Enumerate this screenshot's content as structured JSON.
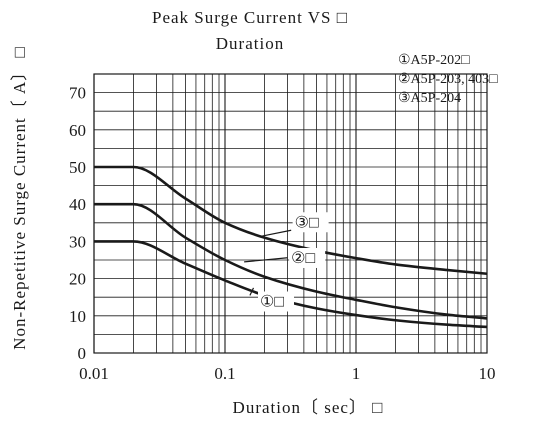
{
  "chart_data": {
    "type": "line",
    "title_lines": [
      "Peak Surge Current VS □",
      "Duration"
    ],
    "xlabel": "Duration〔 sec〕 □",
    "ylabel": "Non-Repetitive Surge Current〔 A〕 □",
    "x_scale": "log",
    "xlim": [
      0.01,
      10
    ],
    "ylim": [
      0,
      75
    ],
    "x_tick_labels": [
      "0.01",
      "0.1",
      "1",
      "10"
    ],
    "x_ticks": [
      0.01,
      0.1,
      1,
      10
    ],
    "y_ticks": [
      0,
      10,
      20,
      30,
      40,
      50,
      60,
      70
    ],
    "y_tick_labels": [
      "0",
      "10",
      "20",
      "30",
      "40",
      "50",
      "60",
      "70"
    ],
    "grid": true,
    "legend": {
      "placement": "top-right",
      "entries": [
        "①A5P-202□",
        "②A5P-203, 403□",
        "③A5P-204"
      ]
    },
    "series": [
      {
        "name": "①A5P-202□",
        "annotation": "①□",
        "points": [
          [
            0.01,
            30
          ],
          [
            0.02,
            30
          ],
          [
            0.05,
            24
          ],
          [
            0.1,
            19.5
          ],
          [
            0.2,
            15.5
          ],
          [
            0.5,
            12
          ],
          [
            1,
            10.2
          ],
          [
            2,
            8.8
          ],
          [
            5,
            7.6
          ],
          [
            10,
            7
          ]
        ]
      },
      {
        "name": "②A5P-203, 403□",
        "annotation": "②□",
        "points": [
          [
            0.01,
            40
          ],
          [
            0.02,
            40
          ],
          [
            0.05,
            31
          ],
          [
            0.1,
            25
          ],
          [
            0.2,
            20.5
          ],
          [
            0.5,
            16.5
          ],
          [
            1,
            14.3
          ],
          [
            2,
            12.3
          ],
          [
            5,
            10.3
          ],
          [
            10,
            9.3
          ]
        ]
      },
      {
        "name": "③A5P-204",
        "annotation": "③□",
        "points": [
          [
            0.01,
            50
          ],
          [
            0.02,
            50
          ],
          [
            0.05,
            41.5
          ],
          [
            0.1,
            35
          ],
          [
            0.2,
            31
          ],
          [
            0.5,
            27.5
          ],
          [
            1,
            25.5
          ],
          [
            2,
            23.8
          ],
          [
            5,
            22.3
          ],
          [
            10,
            21.3
          ]
        ]
      }
    ],
    "colors": {
      "line": "#1a1a1a",
      "grid": "#1a1a1a",
      "background": "#ffffff"
    }
  }
}
